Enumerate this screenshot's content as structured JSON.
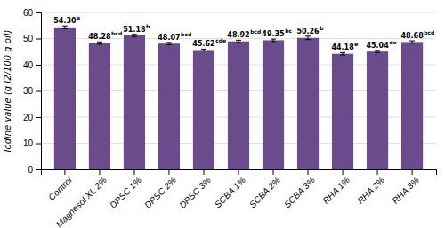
{
  "chart_data": {
    "type": "bar",
    "categories": [
      "Control",
      "Magnesol XL 2%",
      "DPSC 1%",
      "DPSC 2%",
      "DPSC 3%",
      "SCBA 1%",
      "SCBA 2%",
      "SCBA 3%",
      "RHA 1%",
      "RHA 2%",
      "RHA 3%"
    ],
    "values": [
      54.3,
      48.28,
      51.18,
      48.07,
      45.62,
      48.92,
      49.35,
      50.26,
      44.18,
      45.04,
      48.68
    ],
    "errors": [
      0.55,
      0.45,
      0.45,
      0.45,
      0.35,
      0.45,
      0.45,
      0.65,
      0.45,
      0.45,
      0.45
    ],
    "data_labels": true,
    "value_labels": [
      "54.30",
      "48.28",
      "51.18",
      "48.07",
      "45.62",
      "48.92",
      "49.35",
      "50.26",
      "44.18",
      "45.04",
      "48.68"
    ],
    "annotations": [
      "a",
      "bcd",
      "b",
      "bcd",
      "cde",
      "bcd",
      "bc",
      "b",
      "e",
      "de",
      "bcd"
    ],
    "color": "#6A4C8C",
    "ylabel": "Iodine value (g I2/100 g oil)",
    "ylim": [
      0,
      60
    ],
    "yticks": [
      0,
      10,
      20,
      30,
      40,
      50,
      60
    ],
    "grid": true
  }
}
